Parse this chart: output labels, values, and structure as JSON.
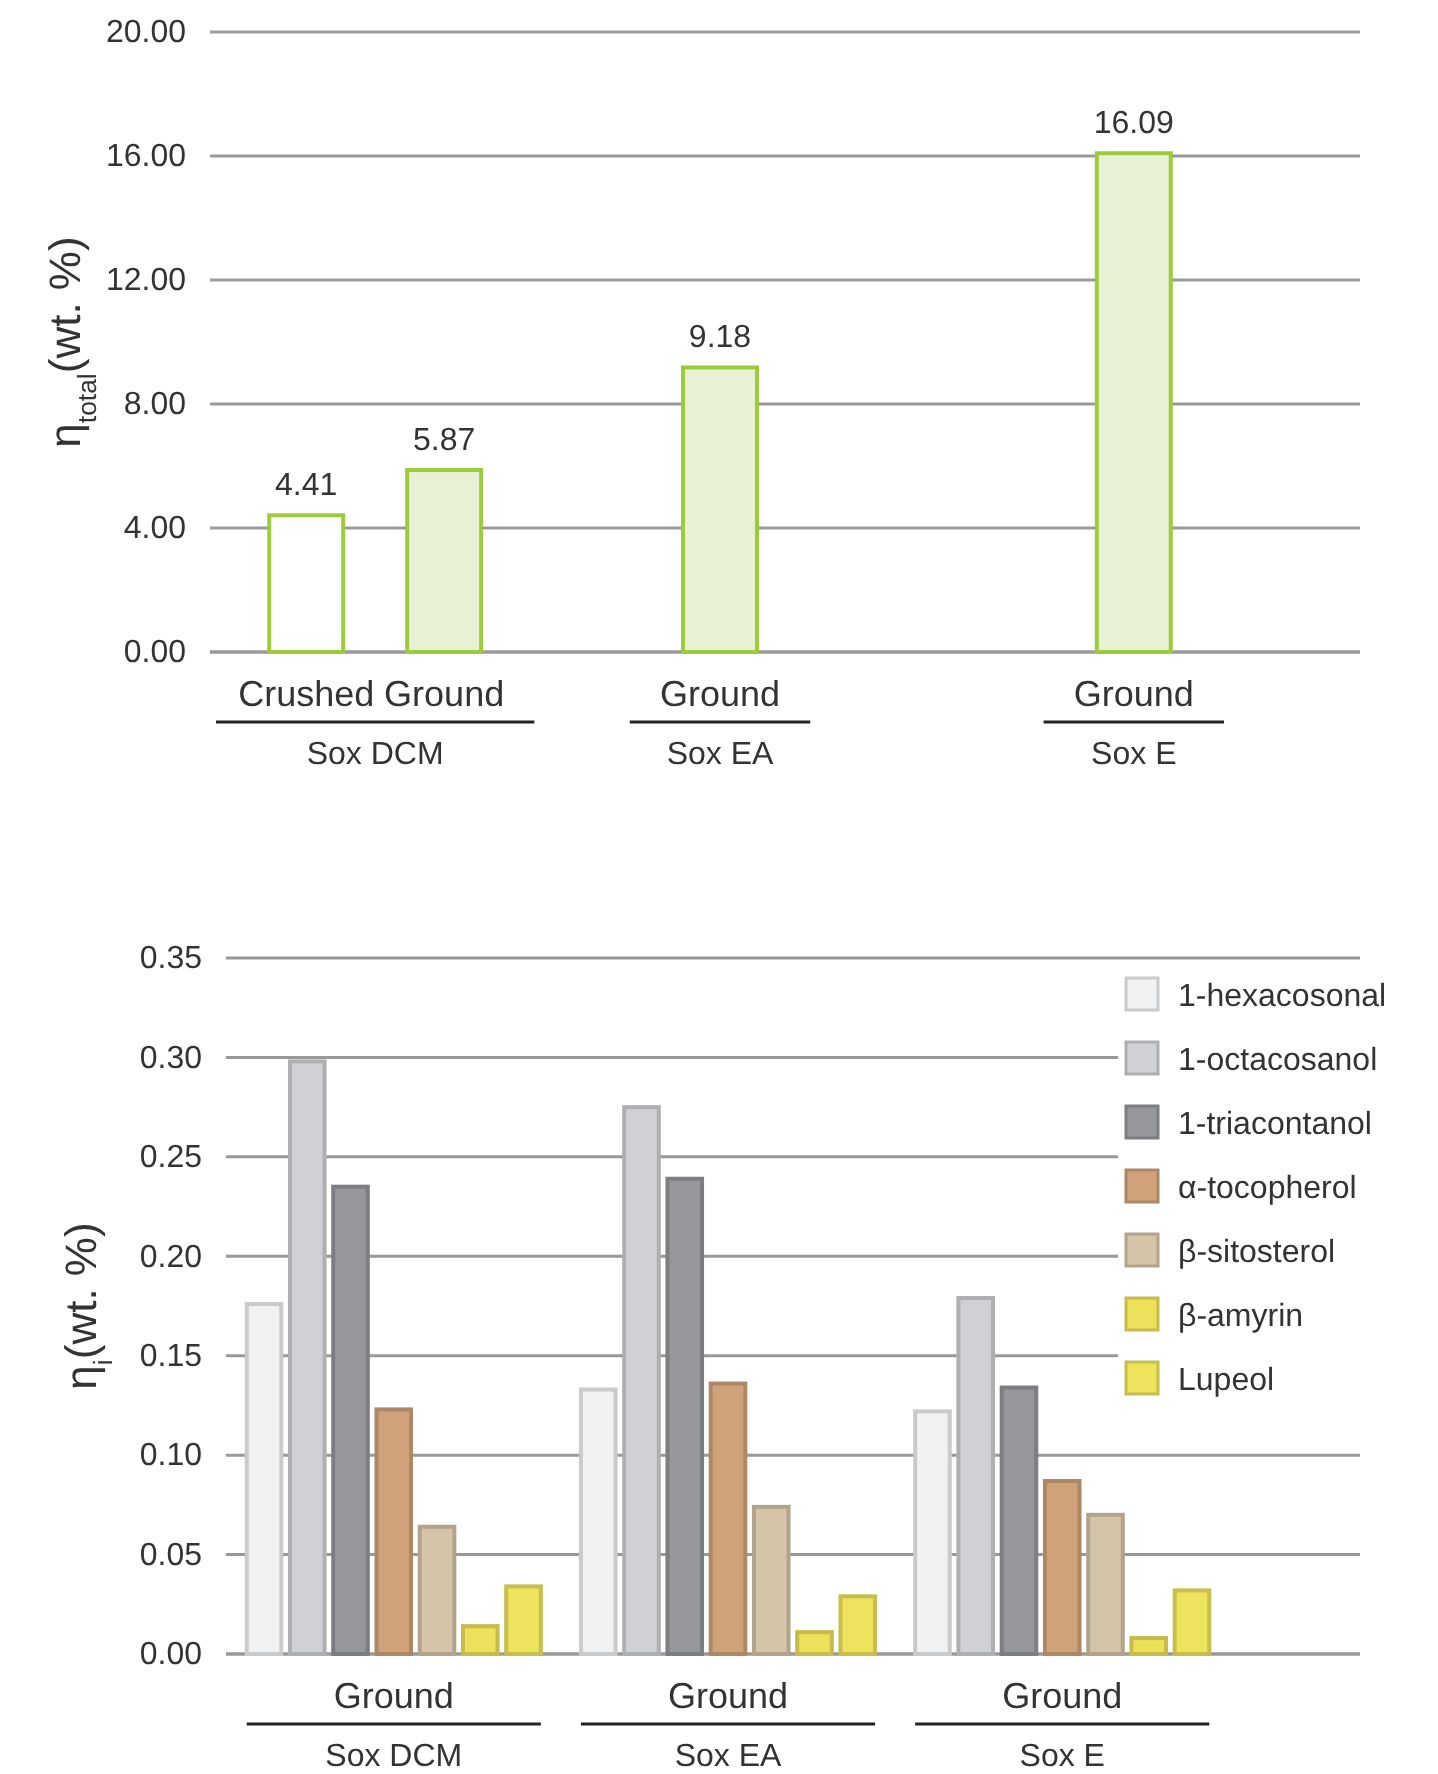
{
  "chart_data": [
    {
      "type": "bar",
      "ylabel": "η$_{total}$(wt. %)",
      "categories": [
        "Crushed",
        "Ground",
        null,
        "Ground",
        null,
        null,
        "Ground"
      ],
      "values": [
        4.41,
        5.87,
        null,
        9.18,
        null,
        null,
        16.09
      ],
      "colors": [
        "#ffffff",
        "#e8f1d5",
        null,
        "#e8f1d5",
        null,
        null,
        "#e8f1d5"
      ],
      "ylim": [
        0,
        20
      ],
      "yticks": [
        {
          "value": 0,
          "label": "0.00"
        },
        {
          "value": 4,
          "label": "4.00"
        },
        {
          "value": 8,
          "label": "8.00"
        },
        {
          "value": 12,
          "label": "12.00"
        },
        {
          "value": 16,
          "label": "16.00"
        },
        {
          "value": 20,
          "label": "20.00"
        }
      ],
      "grid": "y",
      "data_labels": true,
      "annotations": [
        "Sox DCM",
        "Sox EA",
        "Sox E"
      ]
    },
    {
      "type": "bar",
      "ylabel": "η$_{i}$(wt. %)",
      "categories": [
        "Ground",
        "Ground",
        "Ground"
      ],
      "series": [
        {
          "name": "1-hexacosonal",
          "color": "#f0f1f3",
          "values": [
            0.176,
            0.133,
            0.122
          ]
        },
        {
          "name": "1-octacosanol",
          "color": "#d0d1d4",
          "values": [
            0.298,
            0.275,
            0.179
          ]
        },
        {
          "name": "1-triacontanol",
          "color": "#96979b",
          "values": [
            0.235,
            0.239,
            0.134
          ]
        },
        {
          "name": "α-tocopherol",
          "color": "#cfa27a",
          "values": [
            0.123,
            0.136,
            0.087
          ]
        },
        {
          "name": "β-sitosterol",
          "color": "#d5c4a7",
          "values": [
            0.064,
            0.074,
            0.07
          ]
        },
        {
          "name": "β-amyrin",
          "color": "#ede05a",
          "values": [
            0.014,
            0.011,
            0.008
          ]
        },
        {
          "name": "Lupeol",
          "color": "#ede35c",
          "values": [
            0.034,
            0.029,
            0.032
          ]
        }
      ],
      "ylim": [
        0,
        0.35
      ],
      "yticks": [
        {
          "value": 0,
          "label": "0.00"
        },
        {
          "value": 0.05,
          "label": "0.05"
        },
        {
          "value": 0.1,
          "label": "0.10"
        },
        {
          "value": 0.15,
          "label": "0.15"
        },
        {
          "value": 0.2,
          "label": "0.20"
        },
        {
          "value": 0.25,
          "label": "0.25"
        },
        {
          "value": 0.3,
          "label": "0.30"
        },
        {
          "value": 0.35,
          "label": "0.35"
        }
      ],
      "grid": "y",
      "legend": "right",
      "annotations": [
        "Sox DCM",
        "Sox EA",
        "Sox E"
      ]
    }
  ]
}
